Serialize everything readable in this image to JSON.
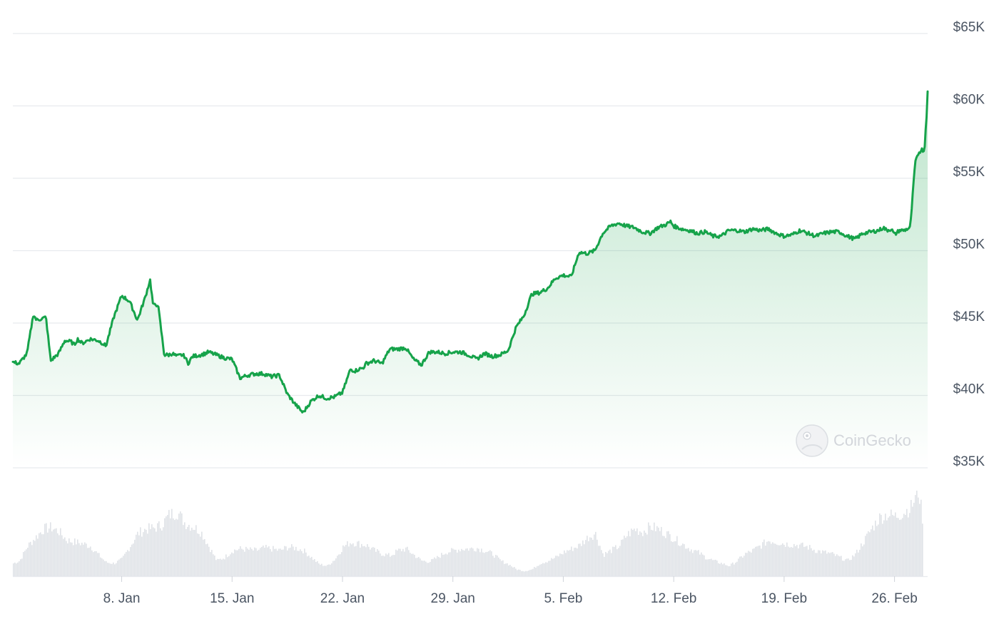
{
  "chart_data": {
    "type": "area",
    "x_tick_labels": [
      "8. Jan",
      "15. Jan",
      "22. Jan",
      "29. Jan",
      "5. Feb",
      "12. Feb",
      "19. Feb",
      "26. Feb"
    ],
    "x_ticks_day": [
      8,
      15,
      22,
      29,
      36,
      43,
      50,
      57
    ],
    "x_range_day": [
      1.1,
      59.1
    ],
    "y_tick_labels": [
      "$35K",
      "$40K",
      "$45K",
      "$50K",
      "$55K",
      "$60K",
      "$65K"
    ],
    "y_ticks": [
      35000,
      40000,
      45000,
      50000,
      55000,
      60000,
      65000
    ],
    "ylim": [
      35000,
      65000
    ],
    "grid": "horizontal",
    "line_color": "#16a34a",
    "fill_color": "#16a34a",
    "watermark": "CoinGecko",
    "price": {
      "day": [
        1.1,
        1.5,
        2.0,
        2.4,
        2.6,
        3.2,
        3.5,
        4.0,
        4.4,
        4.8,
        5.0,
        5.2,
        5.5,
        6.0,
        6.5,
        6.8,
        7.0,
        7.5,
        8.0,
        8.5,
        9.0,
        9.5,
        9.8,
        10.0,
        10.3,
        10.7,
        11.0,
        11.2,
        11.5,
        11.8,
        12.0,
        12.2,
        12.5,
        13.0,
        13.3,
        13.5,
        14.0,
        14.5,
        15.0,
        15.5,
        16.0,
        16.5,
        17.0,
        17.5,
        18.0,
        18.5,
        19.0,
        19.5,
        20.0,
        20.5,
        21.0,
        21.5,
        22.0,
        22.5,
        22.8,
        23.0,
        23.3,
        23.5,
        24.0,
        24.5,
        25.0,
        25.5,
        26.0,
        26.5,
        27.0,
        27.5,
        28.0,
        28.5,
        29.0,
        29.5,
        30.0,
        30.5,
        31.0,
        31.5,
        32.0,
        32.5,
        33.0,
        33.5,
        34.0,
        34.5,
        35.0,
        35.5,
        36.0,
        36.5,
        37.0,
        37.5,
        38.0,
        38.5,
        39.0,
        39.5,
        40.0,
        40.5,
        41.0,
        41.5,
        42.0,
        42.5,
        42.8,
        43.0,
        43.5,
        44.0,
        44.5,
        45.0,
        45.5,
        46.0,
        46.5,
        47.0,
        47.5,
        48.0,
        48.5,
        49.0,
        49.5,
        50.0,
        50.5,
        51.0,
        51.5,
        52.0,
        52.5,
        53.0,
        53.5,
        54.0,
        54.5,
        55.0,
        55.5,
        56.0,
        56.3,
        56.5,
        56.8,
        57.0,
        57.3,
        57.6,
        58.0,
        58.3,
        58.5,
        58.7,
        58.9,
        59.0,
        59.1
      ],
      "usd": [
        42300,
        42200,
        42900,
        45600,
        45200,
        45400,
        42400,
        42900,
        43800,
        43700,
        43500,
        43900,
        43600,
        43900,
        43800,
        43600,
        43400,
        45400,
        46900,
        46500,
        45200,
        46800,
        48000,
        46200,
        46300,
        42800,
        42800,
        42900,
        42700,
        42800,
        42700,
        42200,
        42700,
        42800,
        42900,
        43000,
        42800,
        42600,
        42500,
        41200,
        41400,
        41500,
        41500,
        41300,
        41400,
        40100,
        39400,
        38800,
        39600,
        40000,
        39800,
        39900,
        40200,
        41800,
        41700,
        41800,
        41900,
        42200,
        42400,
        42200,
        43200,
        43200,
        43300,
        42500,
        42100,
        43000,
        43000,
        42900,
        43000,
        43000,
        42800,
        42500,
        42900,
        42700,
        42800,
        43100,
        44700,
        45500,
        47000,
        47100,
        47400,
        48100,
        48300,
        48200,
        49900,
        49800,
        50000,
        51200,
        51700,
        51900,
        51700,
        51600,
        51300,
        51200,
        51600,
        51800,
        52000,
        51700,
        51500,
        51400,
        51200,
        51300,
        51000,
        51000,
        51400,
        51400,
        51300,
        51500,
        51400,
        51500,
        51200,
        51000,
        51100,
        51400,
        51200,
        51000,
        51200,
        51300,
        51300,
        51000,
        50800,
        51200,
        51300,
        51400,
        51600,
        51400,
        51500,
        51100,
        51400,
        51400,
        51600,
        56000,
        56700,
        57000,
        56900,
        58900,
        59900,
        61500,
        62200,
        61000
      ]
    },
    "volume": {
      "day": [
        1.1,
        1.5,
        2.0,
        2.5,
        3.0,
        3.5,
        4.0,
        4.5,
        5.0,
        5.5,
        6.0,
        6.5,
        7.0,
        7.5,
        8.0,
        8.5,
        9.0,
        9.5,
        10.0,
        10.5,
        11.0,
        11.5,
        12.0,
        12.5,
        13.0,
        13.5,
        14.0,
        14.5,
        15.0,
        15.5,
        16.0,
        16.5,
        17.0,
        17.5,
        18.0,
        18.5,
        19.0,
        19.5,
        20.0,
        20.5,
        21.0,
        21.5,
        22.0,
        22.5,
        23.0,
        23.5,
        24.0,
        24.5,
        25.0,
        25.5,
        26.0,
        26.5,
        27.0,
        27.5,
        28.0,
        28.5,
        29.0,
        29.5,
        30.0,
        30.5,
        31.0,
        31.5,
        32.0,
        32.5,
        33.0,
        33.5,
        34.0,
        34.5,
        35.0,
        35.5,
        36.0,
        36.5,
        37.0,
        37.5,
        38.0,
        38.5,
        39.0,
        39.5,
        40.0,
        40.5,
        41.0,
        41.5,
        42.0,
        42.5,
        43.0,
        43.5,
        44.0,
        44.5,
        45.0,
        45.5,
        46.0,
        46.5,
        47.0,
        47.5,
        48.0,
        48.5,
        49.0,
        49.5,
        50.0,
        50.5,
        51.0,
        51.5,
        52.0,
        52.5,
        53.0,
        53.5,
        54.0,
        54.5,
        55.0,
        55.5,
        56.0,
        56.5,
        57.0,
        57.5,
        58.0,
        58.5,
        58.8,
        59.0,
        59.1
      ],
      "level": [
        0.15,
        0.18,
        0.35,
        0.45,
        0.55,
        0.57,
        0.52,
        0.42,
        0.4,
        0.38,
        0.35,
        0.25,
        0.16,
        0.15,
        0.2,
        0.35,
        0.5,
        0.55,
        0.56,
        0.6,
        0.72,
        0.75,
        0.62,
        0.58,
        0.52,
        0.35,
        0.18,
        0.22,
        0.3,
        0.32,
        0.31,
        0.3,
        0.33,
        0.32,
        0.3,
        0.34,
        0.33,
        0.3,
        0.22,
        0.14,
        0.12,
        0.2,
        0.34,
        0.4,
        0.38,
        0.36,
        0.3,
        0.26,
        0.24,
        0.3,
        0.32,
        0.25,
        0.18,
        0.17,
        0.22,
        0.28,
        0.3,
        0.32,
        0.32,
        0.33,
        0.3,
        0.26,
        0.18,
        0.14,
        0.08,
        0.06,
        0.08,
        0.15,
        0.18,
        0.22,
        0.28,
        0.32,
        0.36,
        0.45,
        0.5,
        0.25,
        0.3,
        0.35,
        0.48,
        0.55,
        0.52,
        0.58,
        0.55,
        0.5,
        0.44,
        0.38,
        0.32,
        0.28,
        0.22,
        0.18,
        0.15,
        0.12,
        0.18,
        0.26,
        0.3,
        0.36,
        0.42,
        0.4,
        0.38,
        0.37,
        0.36,
        0.34,
        0.3,
        0.28,
        0.26,
        0.22,
        0.18,
        0.26,
        0.4,
        0.55,
        0.68,
        0.72,
        0.7,
        0.74,
        0.8,
        1.0,
        0.6
      ]
    }
  }
}
